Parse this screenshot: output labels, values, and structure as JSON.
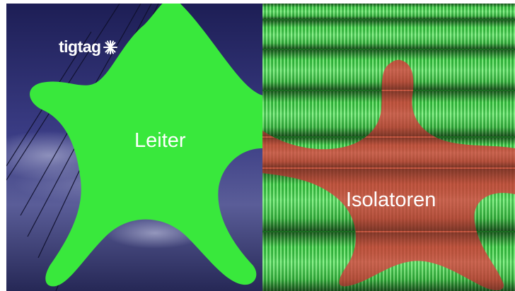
{
  "brand": {
    "name": "tigtag",
    "icon": "sparkle-burst-icon"
  },
  "left_panel": {
    "label": "Leiter",
    "blob_color": "#39e83c",
    "sky_color": "#2e2f6e"
  },
  "right_panel": {
    "label": "Isolatoren",
    "blob_color": "#d93a3a",
    "tube_color": "#35c441"
  }
}
